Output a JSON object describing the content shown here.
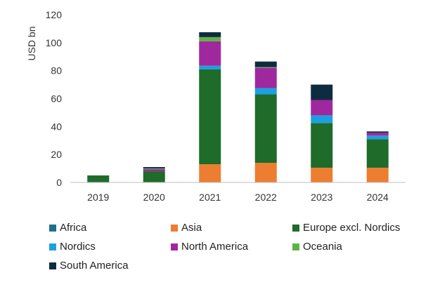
{
  "chart_data": {
    "type": "bar",
    "stacked": true,
    "categories": [
      "2019",
      "2020",
      "2021",
      "2022",
      "2023",
      "2024"
    ],
    "ylabel": "USD bn",
    "ylim": [
      0,
      120
    ],
    "yticks": [
      0,
      20,
      40,
      60,
      80,
      100,
      120
    ],
    "grid": false,
    "legend_position": "bottom",
    "series": [
      {
        "name": "Africa",
        "color": "#1F6F8B",
        "values": [
          0,
          0,
          0,
          0,
          0,
          0
        ]
      },
      {
        "name": "Asia",
        "color": "#ED7D31",
        "values": [
          0,
          0,
          13,
          14,
          10.5,
          10.5
        ]
      },
      {
        "name": "Europe excl. Nordics",
        "color": "#1E6B2A",
        "values": [
          5,
          8,
          68,
          49,
          32,
          20.5
        ]
      },
      {
        "name": "Nordics",
        "color": "#1BA1E2",
        "values": [
          0,
          0,
          2.5,
          4.5,
          5.5,
          2.5
        ]
      },
      {
        "name": "North America",
        "color": "#A0289E",
        "values": [
          0,
          1.5,
          17.5,
          14.5,
          11,
          2
        ]
      },
      {
        "name": "Oceania",
        "color": "#5FB246",
        "values": [
          0,
          0.5,
          3,
          0.5,
          0,
          0
        ]
      },
      {
        "name": "South America",
        "color": "#0E2C40",
        "values": [
          0,
          1,
          3.5,
          4,
          11,
          1
        ]
      }
    ]
  }
}
